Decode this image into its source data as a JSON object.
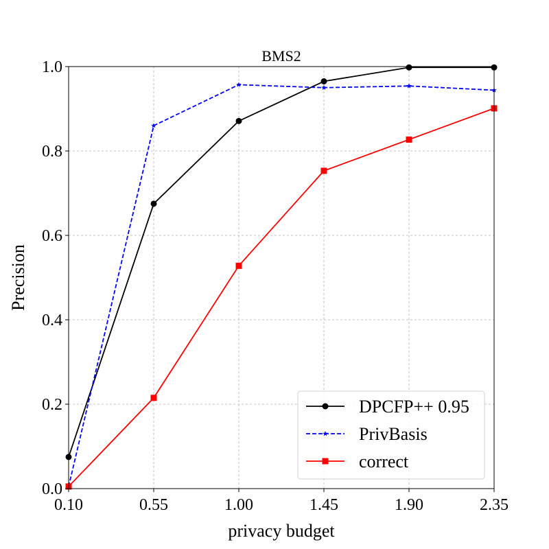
{
  "chart_data": {
    "type": "line",
    "title": "BMS2",
    "xlabel": "privacy budget",
    "ylabel": "Precision",
    "xlim": [
      0.1,
      2.35
    ],
    "ylim": [
      0.0,
      1.0
    ],
    "x": [
      0.1,
      0.55,
      1.0,
      1.45,
      1.9,
      2.35
    ],
    "xticks": [
      "0.10",
      "0.55",
      "1.00",
      "1.45",
      "1.90",
      "2.35"
    ],
    "yticks": [
      "0.0",
      "0.2",
      "0.4",
      "0.6",
      "0.8",
      "1.0"
    ],
    "grid": true,
    "legend_position": "lower-right",
    "series": [
      {
        "name": "DPCFP++ 0.95",
        "values": [
          0.075,
          0.675,
          0.871,
          0.965,
          0.998,
          0.998
        ],
        "color": "#000000",
        "linestyle": "solid",
        "marker": "circle"
      },
      {
        "name": "PrivBasis",
        "values": [
          0.005,
          0.86,
          0.957,
          0.95,
          0.954,
          0.944
        ],
        "color": "#0000ff",
        "linestyle": "dashed",
        "marker": "star"
      },
      {
        "name": "correct",
        "values": [
          0.005,
          0.215,
          0.528,
          0.753,
          0.827,
          0.901
        ],
        "color": "#ff0000",
        "linestyle": "solid",
        "marker": "square"
      }
    ]
  }
}
